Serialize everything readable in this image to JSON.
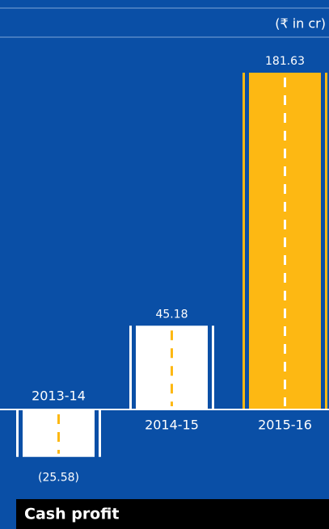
{
  "chart_data": {
    "type": "bar",
    "title": "Cash profit",
    "unit": "(₹ in cr)",
    "categories": [
      "2013-14",
      "2014-15",
      "2015-16"
    ],
    "values": [
      -25.58,
      45.18,
      181.63
    ],
    "value_labels": [
      "(25.58)",
      "45.18",
      "181.63"
    ],
    "colors": [
      "#ffffff",
      "#ffffff",
      "#fdb813"
    ],
    "dash_colors": [
      "#fdb813",
      "#fdb813",
      "#ffffff"
    ],
    "background": "#0a4fa6"
  }
}
